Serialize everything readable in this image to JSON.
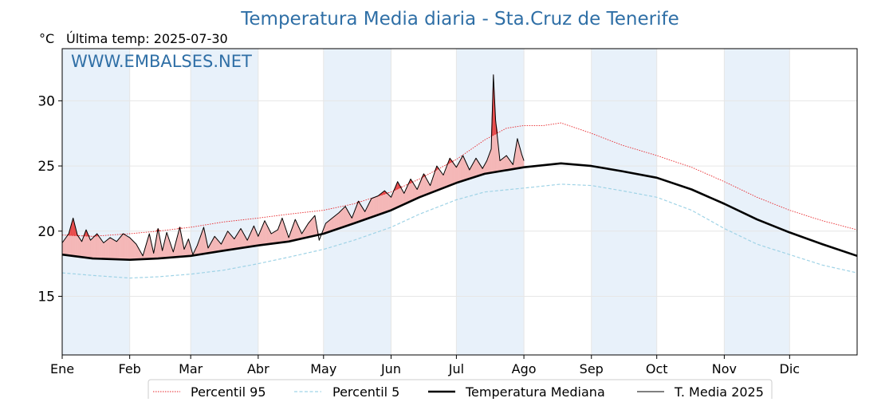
{
  "chart_data": {
    "type": "line",
    "title": "Temperatura Media diaria - Sta.Cruz de Tenerife",
    "unit_label": "°C",
    "last_temp_label": "Última temp: 2025-07-30",
    "watermark": "WWW.EMBALSES.NET",
    "ylim": [
      10.5,
      34
    ],
    "yticks": [
      15,
      20,
      25,
      30
    ],
    "x_range_days": [
      1,
      366
    ],
    "month_labels": [
      "Ene",
      "Feb",
      "Mar",
      "Abr",
      "May",
      "Jun",
      "Jul",
      "Ago",
      "Sep",
      "Oct",
      "Nov",
      "Dic"
    ],
    "month_start_days": [
      1,
      32,
      60,
      91,
      121,
      152,
      182,
      213,
      244,
      274,
      305,
      335
    ],
    "shaded_months": [
      0,
      2,
      4,
      6,
      8,
      10
    ],
    "grid": true,
    "legend_position": "bottom-center",
    "colors": {
      "p95": "#e8262a",
      "p5": "#9fd3e6",
      "median": "#000000",
      "current": "#000000",
      "fill_above": "#f4b7b7",
      "fill_above_strong": "#e84a4a",
      "band": "#e8f1fa",
      "title": "#2f6fa6"
    },
    "series": [
      {
        "name": "Percentil 95",
        "style": "dotted-red",
        "points": [
          [
            1,
            19.7
          ],
          [
            15,
            19.6
          ],
          [
            32,
            19.8
          ],
          [
            45,
            20.0
          ],
          [
            60,
            20.3
          ],
          [
            75,
            20.7
          ],
          [
            91,
            21.0
          ],
          [
            105,
            21.3
          ],
          [
            121,
            21.6
          ],
          [
            135,
            22.1
          ],
          [
            152,
            23.0
          ],
          [
            165,
            24.0
          ],
          [
            182,
            25.5
          ],
          [
            195,
            27.0
          ],
          [
            205,
            27.9
          ],
          [
            213,
            28.1
          ],
          [
            222,
            28.1
          ],
          [
            230,
            28.3
          ],
          [
            244,
            27.5
          ],
          [
            258,
            26.6
          ],
          [
            274,
            25.8
          ],
          [
            290,
            24.9
          ],
          [
            305,
            23.8
          ],
          [
            320,
            22.6
          ],
          [
            335,
            21.6
          ],
          [
            350,
            20.8
          ],
          [
            366,
            20.1
          ]
        ]
      },
      {
        "name": "Percentil 5",
        "style": "dashed-lightblue",
        "points": [
          [
            1,
            16.8
          ],
          [
            15,
            16.6
          ],
          [
            32,
            16.4
          ],
          [
            45,
            16.5
          ],
          [
            60,
            16.7
          ],
          [
            75,
            17.0
          ],
          [
            91,
            17.5
          ],
          [
            105,
            18.0
          ],
          [
            121,
            18.6
          ],
          [
            135,
            19.3
          ],
          [
            152,
            20.3
          ],
          [
            165,
            21.3
          ],
          [
            182,
            22.4
          ],
          [
            195,
            23.0
          ],
          [
            213,
            23.3
          ],
          [
            230,
            23.6
          ],
          [
            244,
            23.5
          ],
          [
            258,
            23.1
          ],
          [
            274,
            22.6
          ],
          [
            290,
            21.6
          ],
          [
            305,
            20.2
          ],
          [
            320,
            19.0
          ],
          [
            335,
            18.2
          ],
          [
            350,
            17.4
          ],
          [
            366,
            16.8
          ]
        ]
      },
      {
        "name": "Temperatura Mediana",
        "style": "thick-black",
        "points": [
          [
            1,
            18.2
          ],
          [
            15,
            17.9
          ],
          [
            32,
            17.8
          ],
          [
            45,
            17.9
          ],
          [
            60,
            18.1
          ],
          [
            75,
            18.5
          ],
          [
            91,
            18.9
          ],
          [
            105,
            19.2
          ],
          [
            121,
            19.8
          ],
          [
            135,
            20.6
          ],
          [
            152,
            21.6
          ],
          [
            165,
            22.6
          ],
          [
            182,
            23.7
          ],
          [
            195,
            24.4
          ],
          [
            213,
            24.9
          ],
          [
            230,
            25.2
          ],
          [
            244,
            25.0
          ],
          [
            258,
            24.6
          ],
          [
            274,
            24.1
          ],
          [
            290,
            23.2
          ],
          [
            305,
            22.1
          ],
          [
            320,
            20.9
          ],
          [
            335,
            19.9
          ],
          [
            350,
            19.0
          ],
          [
            366,
            18.1
          ]
        ]
      },
      {
        "name": "T. Media 2025",
        "style": "thin-black",
        "points": [
          [
            1,
            19.1
          ],
          [
            4,
            19.8
          ],
          [
            6,
            21.0
          ],
          [
            8,
            19.7
          ],
          [
            10,
            19.2
          ],
          [
            12,
            20.1
          ],
          [
            14,
            19.3
          ],
          [
            17,
            19.8
          ],
          [
            20,
            19.1
          ],
          [
            23,
            19.5
          ],
          [
            26,
            19.2
          ],
          [
            29,
            19.8
          ],
          [
            32,
            19.5
          ],
          [
            35,
            19.0
          ],
          [
            38,
            18.1
          ],
          [
            41,
            19.8
          ],
          [
            43,
            18.3
          ],
          [
            45,
            20.2
          ],
          [
            47,
            18.5
          ],
          [
            49,
            19.9
          ],
          [
            52,
            18.4
          ],
          [
            55,
            20.3
          ],
          [
            57,
            18.6
          ],
          [
            59,
            19.4
          ],
          [
            61,
            18.2
          ],
          [
            63,
            18.9
          ],
          [
            66,
            20.3
          ],
          [
            68,
            18.7
          ],
          [
            71,
            19.6
          ],
          [
            74,
            19.0
          ],
          [
            77,
            20.0
          ],
          [
            80,
            19.4
          ],
          [
            83,
            20.2
          ],
          [
            86,
            19.3
          ],
          [
            89,
            20.4
          ],
          [
            91,
            19.6
          ],
          [
            94,
            20.8
          ],
          [
            97,
            19.8
          ],
          [
            100,
            20.1
          ],
          [
            102,
            21.0
          ],
          [
            105,
            19.5
          ],
          [
            108,
            20.9
          ],
          [
            111,
            19.8
          ],
          [
            114,
            20.6
          ],
          [
            117,
            21.2
          ],
          [
            119,
            19.3
          ],
          [
            122,
            20.6
          ],
          [
            125,
            21.0
          ],
          [
            128,
            21.4
          ],
          [
            131,
            21.9
          ],
          [
            134,
            21.0
          ],
          [
            137,
            22.3
          ],
          [
            140,
            21.5
          ],
          [
            143,
            22.5
          ],
          [
            146,
            22.7
          ],
          [
            149,
            23.1
          ],
          [
            152,
            22.6
          ],
          [
            155,
            23.8
          ],
          [
            158,
            22.9
          ],
          [
            161,
            24.0
          ],
          [
            164,
            23.2
          ],
          [
            167,
            24.4
          ],
          [
            170,
            23.5
          ],
          [
            173,
            25.0
          ],
          [
            176,
            24.3
          ],
          [
            179,
            25.6
          ],
          [
            182,
            24.9
          ],
          [
            185,
            25.8
          ],
          [
            188,
            24.7
          ],
          [
            191,
            25.6
          ],
          [
            194,
            24.8
          ],
          [
            196,
            25.4
          ],
          [
            198,
            26.3
          ],
          [
            199,
            32.0
          ],
          [
            200,
            28.5
          ],
          [
            202,
            25.4
          ],
          [
            205,
            25.8
          ],
          [
            208,
            25.1
          ],
          [
            210,
            27.1
          ],
          [
            212,
            25.9
          ],
          [
            213,
            25.4
          ]
        ]
      }
    ]
  }
}
